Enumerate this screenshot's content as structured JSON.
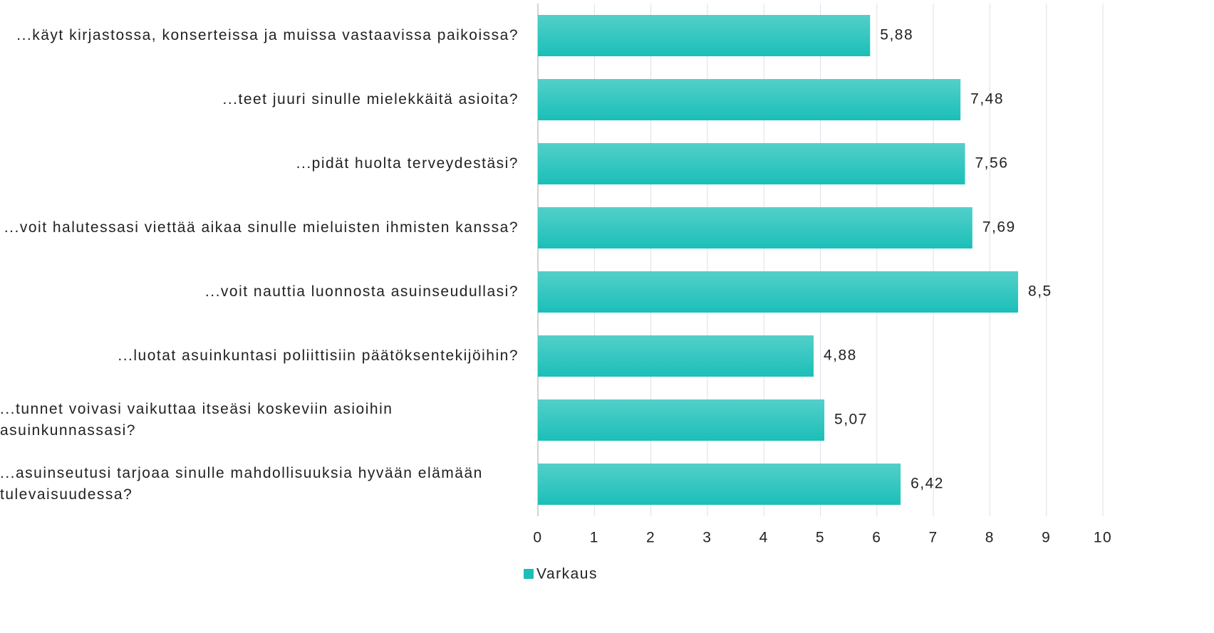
{
  "chart_data": {
    "type": "bar",
    "orientation": "horizontal",
    "categories": [
      "...käyt kirjastossa, konserteissa ja muissa vastaavissa paikoissa?",
      "...teet juuri sinulle mielekkäitä asioita?",
      "...pidät huolta terveydestäsi?",
      "...voit halutessasi viettää aikaa sinulle mieluisten ihmisten kanssa?",
      "...voit nauttia luonnosta asuinseudullasi?",
      "...luotat asuinkuntasi poliittisiin päätöksentekijöihin?",
      "...tunnet voivasi vaikuttaa itseäsi koskeviin asioihin asuinkunnassasi?",
      "...asuinseutusi tarjoaa sinulle mahdollisuuksia hyvään elämään tulevaisuudessa?"
    ],
    "series": [
      {
        "name": "Varkaus",
        "color": "#1bbfb8",
        "values": [
          5.88,
          7.48,
          7.56,
          7.69,
          8.5,
          4.88,
          5.07,
          6.42
        ],
        "value_labels": [
          "5,88",
          "7,48",
          "7,56",
          "7,69",
          "8,5",
          "4,88",
          "5,07",
          "6,42"
        ]
      }
    ],
    "xlim": [
      0,
      10
    ],
    "xticks": [
      0,
      1,
      2,
      3,
      4,
      5,
      6,
      7,
      8,
      9,
      10
    ],
    "grid": true,
    "legend": "bottom"
  }
}
